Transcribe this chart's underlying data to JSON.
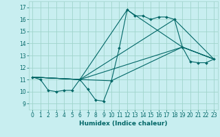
{
  "title": "",
  "xlabel": "Humidex (Indice chaleur)",
  "bg_color": "#c8eef0",
  "grid_color": "#a0d4cc",
  "line_color": "#006666",
  "xlim": [
    -0.5,
    23.5
  ],
  "ylim": [
    8.5,
    17.5
  ],
  "yticks": [
    9,
    10,
    11,
    12,
    13,
    14,
    15,
    16,
    17
  ],
  "xticks": [
    0,
    1,
    2,
    3,
    4,
    5,
    6,
    7,
    8,
    9,
    10,
    11,
    12,
    13,
    14,
    15,
    16,
    17,
    18,
    19,
    20,
    21,
    22,
    23
  ],
  "main_line": {
    "x": [
      0,
      1,
      2,
      3,
      4,
      5,
      6,
      7,
      8,
      9,
      10,
      11,
      12,
      13,
      14,
      15,
      16,
      17,
      18,
      19,
      20,
      21,
      22,
      23
    ],
    "y": [
      11.2,
      11.0,
      10.1,
      10.0,
      10.1,
      10.1,
      11.0,
      10.2,
      9.3,
      9.2,
      10.9,
      13.6,
      16.8,
      16.3,
      16.3,
      16.0,
      16.2,
      16.2,
      16.0,
      13.7,
      12.5,
      12.4,
      12.4,
      12.7
    ]
  },
  "extra_lines": [
    {
      "x": [
        0,
        6,
        10,
        19,
        23
      ],
      "y": [
        11.2,
        11.0,
        10.9,
        13.7,
        12.7
      ]
    },
    {
      "x": [
        0,
        6,
        12,
        19,
        23
      ],
      "y": [
        11.2,
        11.0,
        16.8,
        13.7,
        12.7
      ]
    },
    {
      "x": [
        0,
        6,
        18,
        23
      ],
      "y": [
        11.2,
        11.0,
        16.0,
        12.7
      ]
    },
    {
      "x": [
        0,
        6,
        19,
        23
      ],
      "y": [
        11.2,
        11.0,
        13.7,
        12.7
      ]
    }
  ],
  "figsize": [
    3.2,
    2.0
  ],
  "dpi": 100
}
